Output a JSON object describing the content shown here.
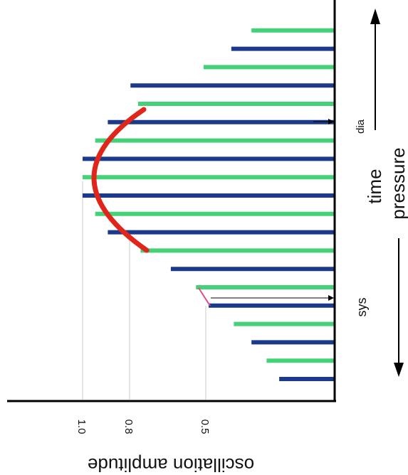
{
  "diagram": {
    "y_axis_label": "oscillation amplitude",
    "ticks": [
      {
        "label": "1.0",
        "value": 1.0
      },
      {
        "label": "0.8",
        "value": 0.8
      },
      {
        "label": "0.5",
        "value": 0.5
      }
    ],
    "time_label": "time",
    "pressure_label": "pressure",
    "sys_label": "sys",
    "dia_label": "dia",
    "colors": {
      "bar_dark": "#1b3a8c",
      "bar_light": "#44d178",
      "envelope": "#e0261b",
      "sys_marker": "#e04a8a",
      "axis": "#000000",
      "gridline": "#c9c9c9"
    },
    "oscillations": {
      "description_order": "from bottom (high pressure / start) to top (low pressure / end)",
      "amplitudes": [
        0.22,
        0.27,
        0.33,
        0.4,
        0.5,
        0.55,
        0.65,
        0.77,
        0.9,
        0.95,
        1.0,
        1.0,
        1.0,
        0.95,
        0.9,
        0.78,
        0.81,
        0.52,
        0.41,
        0.33
      ]
    }
  }
}
